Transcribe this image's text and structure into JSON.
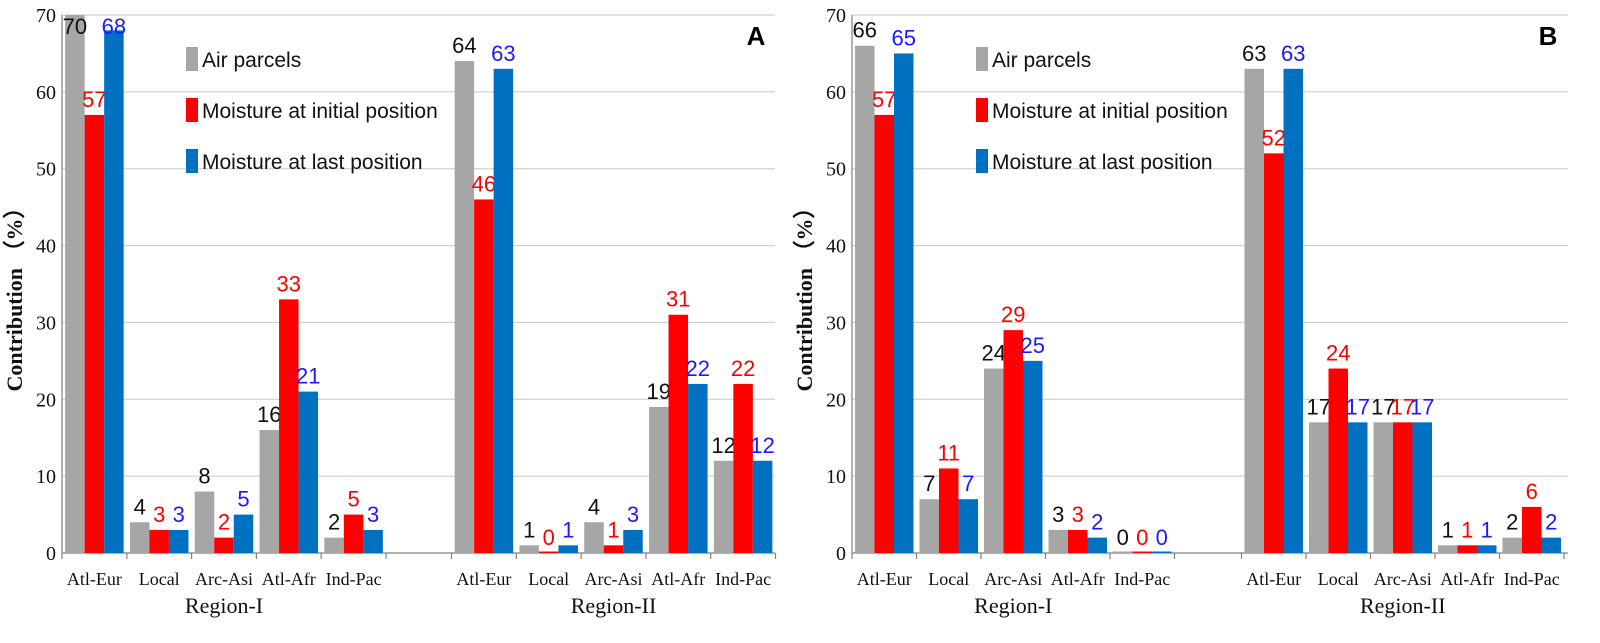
{
  "series": [
    {
      "name": "Air parcels",
      "color": "#a6a6a6",
      "label_color": "#111111"
    },
    {
      "name": "Moisture at initial position",
      "color": "#ff0000",
      "label_color": "#ff0000"
    },
    {
      "name": "Moisture at last position",
      "color": "#0070c0",
      "label_color": "#1a1aff"
    }
  ],
  "y_label": "Contribution （%）",
  "chart_data": [
    {
      "type": "bar",
      "panel": "A",
      "ylim": [
        0,
        70
      ],
      "yticks": [
        "0",
        "10",
        "20",
        "30",
        "40",
        "50",
        "60",
        "70"
      ],
      "groups": [
        {
          "name": "Region-I",
          "categories": [
            "Atl-Eur",
            "Local",
            "Arc-Asi",
            "Atl-Afr",
            "Ind-Pac"
          ],
          "values": [
            [
              70,
              57,
              68
            ],
            [
              4,
              3,
              3
            ],
            [
              8,
              2,
              5
            ],
            [
              16,
              33,
              21
            ],
            [
              2,
              5,
              3
            ]
          ],
          "labels": [
            [
              "70",
              "57",
              "68"
            ],
            [
              "4",
              "3",
              "3"
            ],
            [
              "8",
              "2",
              "5"
            ],
            [
              "16",
              "33",
              "21"
            ],
            [
              "2",
              "5",
              "3"
            ]
          ]
        },
        {
          "name": "Region-II",
          "categories": [
            "Atl-Eur",
            "Local",
            "Arc-Asi",
            "Atl-Afr",
            "Ind-Pac"
          ],
          "values": [
            [
              64,
              46,
              63
            ],
            [
              1,
              0,
              1
            ],
            [
              4,
              1,
              3
            ],
            [
              19,
              31,
              22
            ],
            [
              12,
              22,
              12
            ]
          ],
          "labels": [
            [
              "64",
              "46",
              "63"
            ],
            [
              "1",
              "0",
              "1"
            ],
            [
              "4",
              "1",
              "3"
            ],
            [
              "19",
              "31",
              "22"
            ],
            [
              "12",
              "22",
              "12"
            ]
          ]
        }
      ]
    },
    {
      "type": "bar",
      "panel": "B",
      "ylim": [
        0,
        70
      ],
      "yticks": [
        "0",
        "10",
        "20",
        "30",
        "40",
        "50",
        "60",
        "70"
      ],
      "groups": [
        {
          "name": "Region-I",
          "categories": [
            "Atl-Eur",
            "Local",
            "Arc-Asi",
            "Atl-Afr",
            "Ind-Pac"
          ],
          "values": [
            [
              66,
              57,
              65
            ],
            [
              7,
              11,
              7
            ],
            [
              24,
              29,
              25
            ],
            [
              3,
              3,
              2
            ],
            [
              0,
              0,
              0
            ]
          ],
          "labels": [
            [
              "66",
              "57",
              "65"
            ],
            [
              "7",
              "11",
              "7"
            ],
            [
              "24",
              "29",
              "25"
            ],
            [
              "3",
              "3",
              "2"
            ],
            [
              "0",
              "0",
              "0"
            ]
          ]
        },
        {
          "name": "Region-II",
          "categories": [
            "Atl-Eur",
            "Local",
            "Arc-Asi",
            "Atl-Afr",
            "Ind-Pac"
          ],
          "values": [
            [
              63,
              52,
              63
            ],
            [
              17,
              24,
              17
            ],
            [
              17,
              17,
              17
            ],
            [
              1,
              1,
              1
            ],
            [
              2,
              6,
              2
            ]
          ],
          "labels": [
            [
              "63",
              "52",
              "63"
            ],
            [
              "17",
              "24",
              "17"
            ],
            [
              "17",
              "17",
              "17"
            ],
            [
              "1",
              "1",
              "1"
            ],
            [
              "2",
              "6",
              "2"
            ]
          ]
        }
      ]
    }
  ]
}
